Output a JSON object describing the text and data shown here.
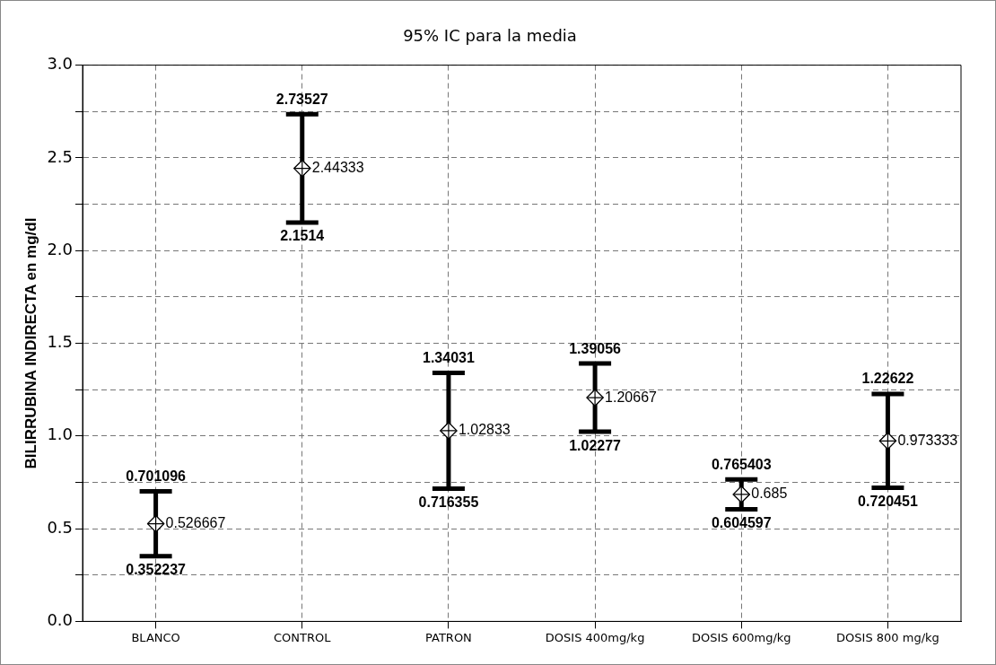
{
  "chart_data": {
    "type": "scatter",
    "title": "95% IC para la media",
    "ylabel": "BILIRRUBINA INDIRECTA en mg/dl",
    "categories": [
      "BLANCO",
      "CONTROL",
      "PATRON",
      "DOSIS 400mg/kg",
      "DOSIS 600mg/kg",
      "DOSIS 800 mg/kg"
    ],
    "series": [
      {
        "color": "#000000",
        "values": [
          0.526667,
          2.44333,
          1.02833,
          1.20667,
          0.685,
          0.973333
        ],
        "errors": [
          [
            0.352237,
            0.701096
          ],
          [
            2.1514,
            2.73527
          ],
          [
            0.716355,
            1.34031
          ],
          [
            1.02277,
            1.39056
          ],
          [
            0.604597,
            0.765403
          ],
          [
            0.720451,
            1.22622
          ]
        ]
      }
    ],
    "ylim": [
      0,
      3
    ],
    "yticks": [
      {
        "value": 0,
        "label": "0.0"
      },
      {
        "value": 0.25,
        "label": null
      },
      {
        "value": 0.5,
        "label": "0.5"
      },
      {
        "value": 0.75,
        "label": null
      },
      {
        "value": 1,
        "label": "1.0"
      },
      {
        "value": 1.25,
        "label": null
      },
      {
        "value": 1.5,
        "label": "1.5"
      },
      {
        "value": 1.75,
        "label": null
      },
      {
        "value": 2,
        "label": "2.0"
      },
      {
        "value": 2.25,
        "label": null
      },
      {
        "value": 2.5,
        "label": "2.5"
      },
      {
        "value": 2.75,
        "label": null
      },
      {
        "value": 3,
        "label": "3.0"
      }
    ],
    "annotations": [
      {
        "text": "0.701096",
        "x": "BLANCO",
        "y": 0.701096
      },
      {
        "text": "0.352237",
        "x": "BLANCO",
        "y": 0.352237
      },
      {
        "text": "2.73527",
        "x": "CONTROL",
        "y": 2.73527
      },
      {
        "text": "2.1514",
        "x": "CONTROL",
        "y": 2.1514
      },
      {
        "text": "1.34031",
        "x": "PATRON",
        "y": 1.34031
      },
      {
        "text": "0.716355",
        "x": "PATRON",
        "y": 0.716355
      },
      {
        "text": "1.39056",
        "x": "DOSIS 400mg/kg",
        "y": 1.39056
      },
      {
        "text": "1.02277",
        "x": "DOSIS 400mg/kg",
        "y": 1.02277
      },
      {
        "text": "0.765403",
        "x": "DOSIS 600mg/kg",
        "y": 0.765403
      },
      {
        "text": "0.604597",
        "x": "DOSIS 600mg/kg",
        "y": 0.604597
      },
      {
        "text": "1.22622",
        "x": "DOSIS 800 mg/kg",
        "y": 1.22622
      },
      {
        "text": "0.720451",
        "x": "DOSIS 800 mg/kg",
        "y": 0.720451
      }
    ],
    "grid": true,
    "marker": "diamond",
    "data_labels": true,
    "legend": false
  }
}
